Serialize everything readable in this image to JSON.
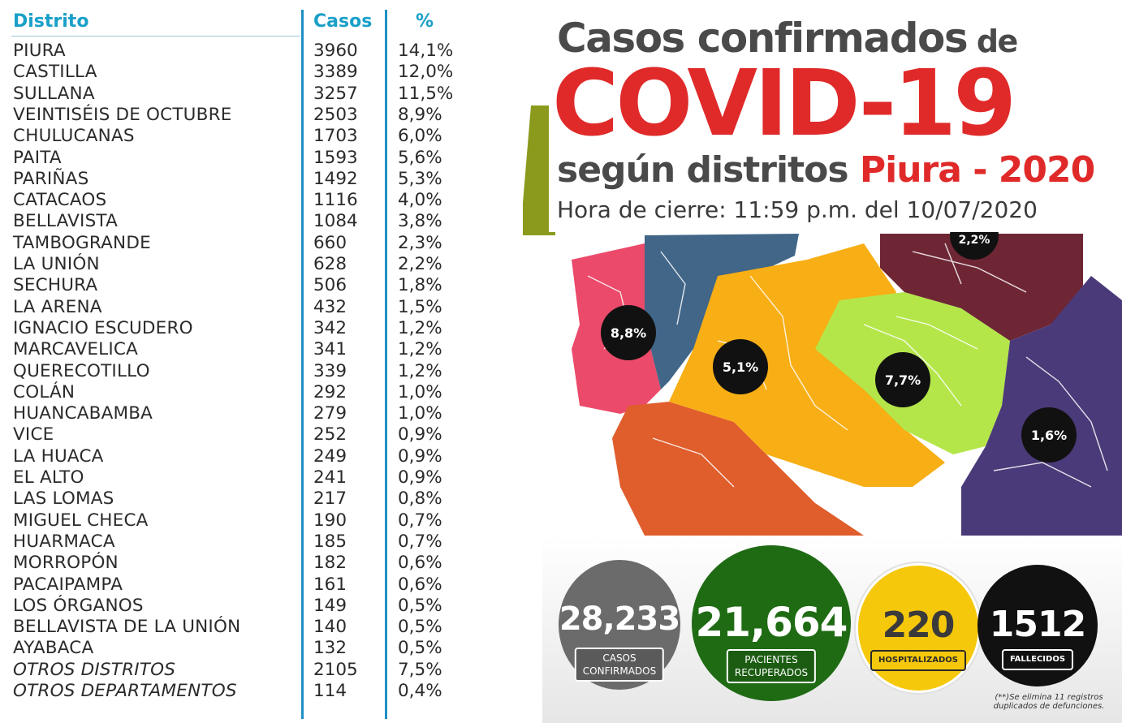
{
  "table": {
    "headers": {
      "district": "Distrito",
      "cases": "Casos",
      "pct": "%"
    },
    "rows": [
      {
        "district": "PIURA",
        "cases": "3960",
        "pct": "14,1%"
      },
      {
        "district": "CASTILLA",
        "cases": "3389",
        "pct": "12,0%"
      },
      {
        "district": "SULLANA",
        "cases": "3257",
        "pct": "11,5%"
      },
      {
        "district": "VEINTISÉIS DE OCTUBRE",
        "cases": "2503",
        "pct": "8,9%"
      },
      {
        "district": "CHULUCANAS",
        "cases": "1703",
        "pct": "6,0%"
      },
      {
        "district": "PAITA",
        "cases": "1593",
        "pct": "5,6%"
      },
      {
        "district": "PARIÑAS",
        "cases": "1492",
        "pct": "5,3%"
      },
      {
        "district": "CATACAOS",
        "cases": "1116",
        "pct": "4,0%"
      },
      {
        "district": "BELLAVISTA",
        "cases": "1084",
        "pct": "3,8%"
      },
      {
        "district": "TAMBOGRANDE",
        "cases": "660",
        "pct": "2,3%"
      },
      {
        "district": "LA UNIÓN",
        "cases": "628",
        "pct": "2,2%"
      },
      {
        "district": "SECHURA",
        "cases": "506",
        "pct": "1,8%"
      },
      {
        "district": "LA ARENA",
        "cases": "432",
        "pct": "1,5%"
      },
      {
        "district": "IGNACIO ESCUDERO",
        "cases": "342",
        "pct": "1,2%"
      },
      {
        "district": "MARCAVELICA",
        "cases": "341",
        "pct": "1,2%"
      },
      {
        "district": "QUERECOTILLO",
        "cases": "339",
        "pct": "1,2%"
      },
      {
        "district": "COLÁN",
        "cases": "292",
        "pct": "1,0%"
      },
      {
        "district": "HUANCABAMBA",
        "cases": "279",
        "pct": "1,0%"
      },
      {
        "district": "VICE",
        "cases": "252",
        "pct": "0,9%"
      },
      {
        "district": "LA HUACA",
        "cases": "249",
        "pct": "0,9%"
      },
      {
        "district": "EL ALTO",
        "cases": "241",
        "pct": "0,9%"
      },
      {
        "district": "LAS LOMAS",
        "cases": "217",
        "pct": "0,8%"
      },
      {
        "district": "MIGUEL CHECA",
        "cases": "190",
        "pct": "0,7%"
      },
      {
        "district": "HUARMACA",
        "cases": "185",
        "pct": "0,7%"
      },
      {
        "district": "MORROPÓN",
        "cases": "182",
        "pct": "0,6%"
      },
      {
        "district": "PACAIPAMPA",
        "cases": "161",
        "pct": "0,6%"
      },
      {
        "district": "LOS ÓRGANOS",
        "cases": "149",
        "pct": "0,5%"
      },
      {
        "district": "BELLAVISTA DE LA UNIÓN",
        "cases": "140",
        "pct": "0,5%"
      },
      {
        "district": "AYABACA",
        "cases": "132",
        "pct": "0,5%"
      },
      {
        "district": "OTROS DISTRITOS",
        "cases": "2105",
        "pct": "7,5%",
        "italic": true
      },
      {
        "district": "OTROS DEPARTAMENTOS",
        "cases": "114",
        "pct": "0,4%",
        "italic": true
      }
    ]
  },
  "title": {
    "line1": "Casos confirmados",
    "line1_de": " de",
    "line2": "COVID-19",
    "line3_gray": "según distritos ",
    "line3_red": "Piura - 2020",
    "line4": "Hora de cierre: 11:59 p.m. del 10/07/2020"
  },
  "map": {
    "labels": [
      "8,8%",
      "5,1%",
      "7,7%",
      "1,6%",
      "2,2%"
    ]
  },
  "stats": {
    "casos": {
      "value": "28,233",
      "label_1": "CASOS",
      "label_2": "CONFIRMADOS"
    },
    "recuperados": {
      "value": "21,664",
      "label_1": "PACIENTES",
      "label_2": "RECUPERADOS"
    },
    "hospitalizados": {
      "value": "220",
      "label": "HOSPITALIZADOS"
    },
    "fallecidos": {
      "value": "1512",
      "label": "FALLECIDOS"
    },
    "footnote_1": "(**)Se elimina 11 registros",
    "footnote_2": "duplicados de defunciones."
  },
  "colors": {
    "header_blue": "#1aa0c8",
    "title_red": "#e02a2a",
    "title_gray": "#4a4a4a"
  }
}
